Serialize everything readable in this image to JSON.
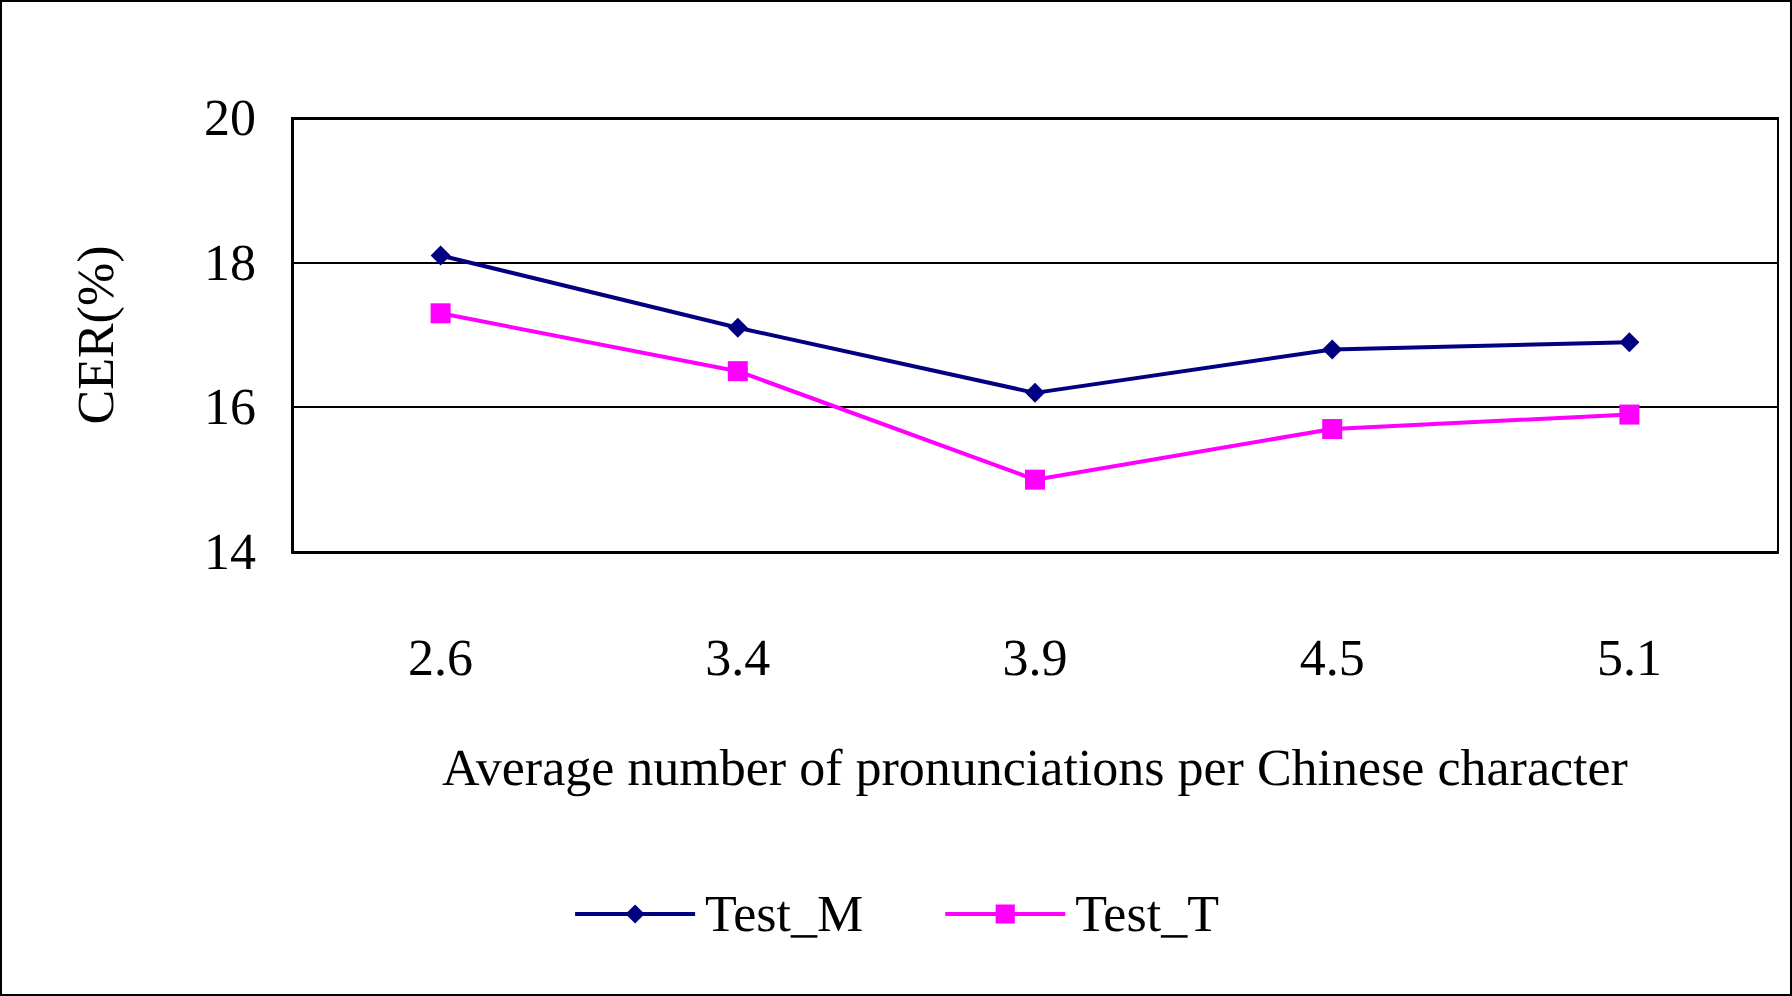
{
  "chart_data": {
    "type": "line",
    "xlabel": "Average number of pronunciations per Chinese character",
    "ylabel": "CER(%)",
    "categories": [
      "2.6",
      "3.4",
      "3.9",
      "4.5",
      "5.1"
    ],
    "series": [
      {
        "name": "Test_M",
        "color": "#000080",
        "marker": "diamond",
        "values": [
          18.1,
          17.1,
          16.2,
          16.8,
          16.9
        ]
      },
      {
        "name": "Test_T",
        "color": "#ff00ff",
        "marker": "square",
        "values": [
          17.3,
          16.5,
          15.0,
          15.7,
          15.9
        ]
      }
    ],
    "ylim": [
      14,
      20
    ],
    "yticks": [
      14,
      16,
      18,
      20
    ],
    "grid": "y",
    "legend": "bottom",
    "line_style": "solid"
  }
}
